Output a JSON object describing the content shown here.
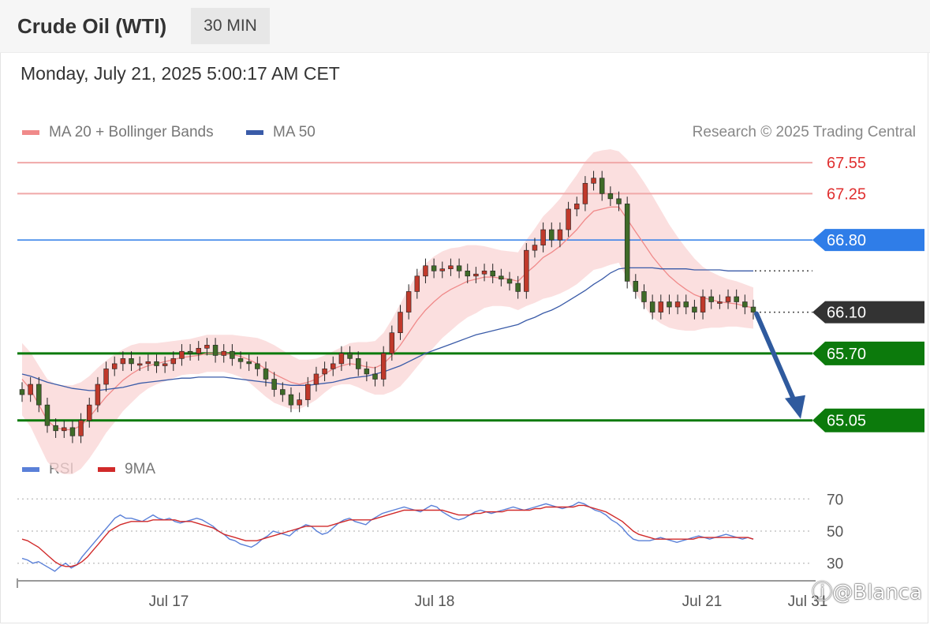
{
  "header": {
    "title": "Crude Oil (WTI)",
    "timeframe": "30 MIN"
  },
  "datetime": "Monday, July 21, 2025 5:00:17 AM CET",
  "legend": {
    "ma20": {
      "label": "MA 20 + Bollinger Bands",
      "color": "#f08a8a"
    },
    "ma50": {
      "label": "MA 50",
      "color": "#3a5ba8"
    },
    "copyright": "Research © 2025 Trading Central"
  },
  "watermark": "@Blanca",
  "chart_data": [
    {
      "type": "candlestick",
      "title": "Crude Oil (WTI)",
      "timeframe": "30 MIN",
      "x_tick_labels": [
        "Jul 17",
        "Jul 18",
        "Jul 21",
        "Jul 31"
      ],
      "ylim": [
        64.65,
        67.75
      ],
      "colors": {
        "up": "#c0392b",
        "down": "#3f6b28",
        "bollinger": "#fad4d4",
        "ma20": "#f08a8a",
        "ma50": "#3a5ba8"
      },
      "price_levels": [
        {
          "value": 67.55,
          "label": "67.55",
          "color": "#e03030",
          "style": "resistance"
        },
        {
          "value": 67.25,
          "label": "67.25",
          "color": "#e03030",
          "style": "resistance"
        },
        {
          "value": 66.8,
          "label": "66.80",
          "color": "#2f7de8",
          "style": "pivot"
        },
        {
          "value": 66.1,
          "label": "66.10",
          "color": "#333333",
          "style": "last_price"
        },
        {
          "value": 65.7,
          "label": "65.70",
          "color": "#0c7a0c",
          "style": "support"
        },
        {
          "value": 65.05,
          "label": "65.05",
          "color": "#0c7a0c",
          "style": "support"
        }
      ],
      "ma50_value_last": 66.5,
      "forecast_arrow": {
        "from": 66.1,
        "to": 65.05,
        "direction": "down"
      },
      "close_series": [
        65.3,
        65.4,
        65.2,
        65.0,
        64.95,
        64.98,
        64.9,
        65.05,
        65.2,
        65.4,
        65.55,
        65.6,
        65.65,
        65.6,
        65.6,
        65.62,
        65.58,
        65.6,
        65.65,
        65.72,
        65.7,
        65.75,
        65.78,
        65.68,
        65.72,
        65.65,
        65.62,
        65.6,
        65.55,
        65.45,
        65.35,
        65.3,
        65.2,
        65.25,
        65.4,
        65.5,
        65.55,
        65.6,
        65.7,
        65.65,
        65.55,
        65.5,
        65.45,
        65.7,
        65.9,
        66.1,
        66.3,
        66.45,
        66.55,
        66.5,
        66.52,
        66.55,
        66.5,
        66.45,
        66.47,
        66.5,
        66.45,
        66.42,
        66.38,
        66.3,
        66.7,
        66.75,
        66.9,
        66.8,
        66.9,
        67.1,
        67.15,
        67.35,
        67.4,
        67.25,
        67.2,
        67.15,
        66.4,
        66.3,
        66.2,
        66.1,
        66.2,
        66.15,
        66.2,
        66.15,
        66.1,
        66.25,
        66.2,
        66.2,
        66.25,
        66.2,
        66.15,
        66.1
      ],
      "ma20_series": [
        65.45,
        65.35,
        65.2,
        65.05,
        64.98,
        64.96,
        64.96,
        65.0,
        65.08,
        65.18,
        65.28,
        65.36,
        65.44,
        65.5,
        65.55,
        65.58,
        65.6,
        65.62,
        65.64,
        65.66,
        65.67,
        65.68,
        65.7,
        65.7,
        65.7,
        65.69,
        65.67,
        65.64,
        65.6,
        65.55,
        65.5,
        65.46,
        65.42,
        65.4,
        65.42,
        65.45,
        65.5,
        65.55,
        65.58,
        65.6,
        65.59,
        65.57,
        65.56,
        65.6,
        65.68,
        65.78,
        65.9,
        66.02,
        66.12,
        66.2,
        66.27,
        66.32,
        66.36,
        66.4,
        66.42,
        66.44,
        66.44,
        66.43,
        66.42,
        66.4,
        66.48,
        66.55,
        66.63,
        66.68,
        66.74,
        66.82,
        66.9,
        67.0,
        67.08,
        67.1,
        67.12,
        67.12,
        67.0,
        66.88,
        66.76,
        66.64,
        66.54,
        66.45,
        66.38,
        66.32,
        66.27,
        66.24,
        66.22,
        66.2,
        66.19,
        66.18,
        66.16,
        66.14
      ],
      "ma50_series": [
        65.5,
        65.48,
        65.45,
        65.42,
        65.4,
        65.38,
        65.36,
        65.35,
        65.34,
        65.34,
        65.35,
        65.36,
        65.37,
        65.39,
        65.41,
        65.42,
        65.43,
        65.44,
        65.45,
        65.46,
        65.46,
        65.47,
        65.47,
        65.47,
        65.47,
        65.46,
        65.45,
        65.44,
        65.43,
        65.42,
        65.41,
        65.4,
        65.39,
        65.39,
        65.39,
        65.4,
        65.41,
        65.42,
        65.44,
        65.46,
        65.47,
        65.48,
        65.5,
        65.52,
        65.55,
        65.58,
        65.62,
        65.66,
        65.7,
        65.73,
        65.76,
        65.79,
        65.82,
        65.85,
        65.88,
        65.9,
        65.92,
        65.94,
        65.96,
        65.98,
        66.02,
        66.05,
        66.09,
        66.12,
        66.16,
        66.21,
        66.26,
        66.31,
        66.37,
        66.42,
        66.48,
        66.52,
        66.53,
        66.53,
        66.53,
        66.53,
        66.52,
        66.52,
        66.52,
        66.52,
        66.51,
        66.51,
        66.51,
        66.51,
        66.5,
        66.5,
        66.5,
        66.5
      ],
      "bollinger_width": [
        0.35,
        0.36,
        0.38,
        0.4,
        0.42,
        0.43,
        0.43,
        0.42,
        0.4,
        0.38,
        0.35,
        0.33,
        0.3,
        0.28,
        0.25,
        0.22,
        0.2,
        0.19,
        0.18,
        0.17,
        0.17,
        0.18,
        0.18,
        0.18,
        0.18,
        0.19,
        0.2,
        0.22,
        0.25,
        0.27,
        0.28,
        0.27,
        0.26,
        0.24,
        0.22,
        0.2,
        0.18,
        0.17,
        0.18,
        0.2,
        0.22,
        0.24,
        0.26,
        0.3,
        0.35,
        0.4,
        0.43,
        0.45,
        0.45,
        0.44,
        0.42,
        0.4,
        0.37,
        0.35,
        0.33,
        0.3,
        0.28,
        0.27,
        0.27,
        0.28,
        0.32,
        0.36,
        0.4,
        0.43,
        0.46,
        0.5,
        0.53,
        0.56,
        0.57,
        0.57,
        0.56,
        0.54,
        0.58,
        0.6,
        0.6,
        0.59,
        0.55,
        0.5,
        0.45,
        0.4,
        0.35,
        0.3,
        0.27,
        0.25,
        0.23,
        0.22,
        0.21,
        0.2
      ]
    },
    {
      "type": "line",
      "series": [
        {
          "name": "RSI",
          "color": "#5a80d8"
        },
        {
          "name": "9MA",
          "color": "#d12a2a"
        }
      ],
      "y_tick_labels": [
        "70",
        "50",
        "30"
      ],
      "ylim": [
        22,
        78
      ],
      "rsi_values": [
        33,
        32,
        30,
        31,
        29,
        27,
        25,
        28,
        30,
        27,
        29,
        34,
        38,
        42,
        46,
        50,
        54,
        58,
        60,
        58,
        58,
        57,
        56,
        58,
        60,
        58,
        57,
        58,
        56,
        55,
        56,
        57,
        58,
        57,
        55,
        53,
        50,
        48,
        45,
        44,
        42,
        41,
        40,
        42,
        45,
        47,
        50,
        49,
        48,
        47,
        50,
        52,
        54,
        53,
        50,
        48,
        49,
        52,
        55,
        57,
        58,
        56,
        55,
        54,
        57,
        59,
        61,
        62,
        63,
        64,
        65,
        64,
        63,
        62,
        64,
        66,
        65,
        62,
        60,
        58,
        57,
        58,
        60,
        62,
        63,
        62,
        61,
        62,
        63,
        64,
        65,
        64,
        63,
        64,
        65,
        66,
        67,
        66,
        65,
        64,
        65,
        66,
        68,
        67,
        65,
        63,
        62,
        60,
        57,
        55,
        52,
        48,
        45,
        44,
        44,
        44,
        45,
        46,
        45,
        44,
        43,
        44,
        45,
        46,
        47,
        46,
        45,
        46,
        47,
        48,
        47,
        46,
        45,
        46,
        45
      ],
      "ma9_values": [
        45,
        44,
        42,
        40,
        37,
        34,
        31,
        29,
        28,
        28,
        29,
        31,
        34,
        38,
        42,
        46,
        50,
        52,
        54,
        55,
        56,
        56,
        56,
        56,
        57,
        57,
        57,
        57,
        57,
        56,
        56,
        56,
        55,
        54,
        53,
        52,
        50,
        48,
        47,
        46,
        45,
        44,
        44,
        44,
        45,
        46,
        47,
        48,
        49,
        50,
        51,
        52,
        53,
        53,
        53,
        53,
        53,
        54,
        55,
        56,
        57,
        57,
        57,
        57,
        57,
        58,
        59,
        60,
        61,
        62,
        63,
        63,
        63,
        63,
        63,
        63,
        63,
        63,
        62,
        61,
        60,
        60,
        60,
        61,
        61,
        62,
        62,
        62,
        62,
        63,
        63,
        63,
        63,
        63,
        64,
        64,
        65,
        65,
        65,
        65,
        65,
        65,
        66,
        66,
        65,
        64,
        63,
        62,
        60,
        58,
        56,
        53,
        50,
        48,
        47,
        46,
        45,
        45,
        45,
        45,
        45,
        45,
        45,
        45,
        46,
        46,
        46,
        46,
        46,
        46,
        46,
        46,
        46,
        46,
        45
      ]
    }
  ]
}
